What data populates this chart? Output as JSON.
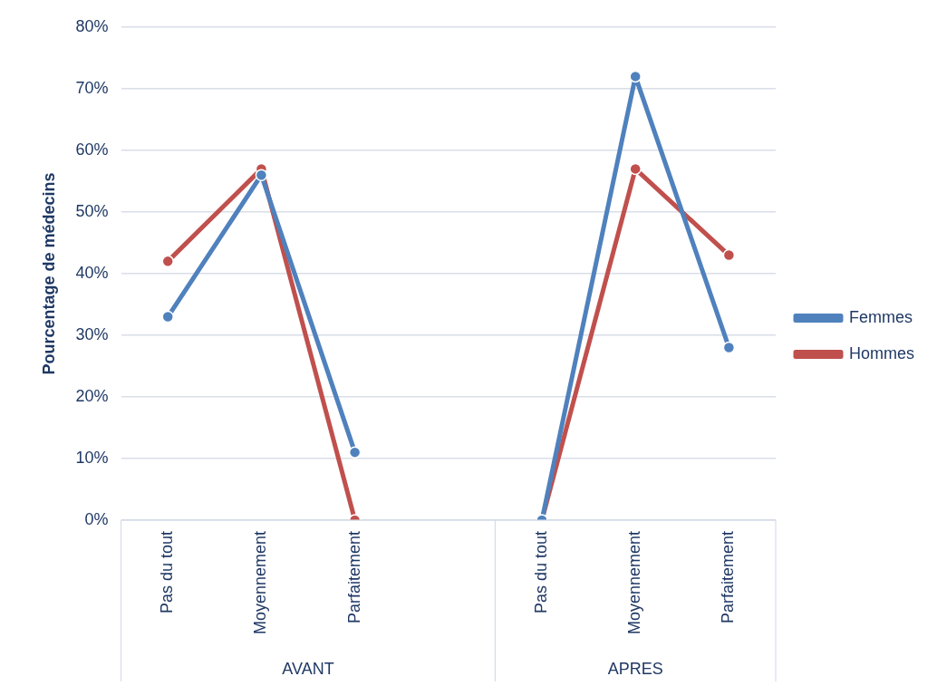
{
  "chart_data": {
    "type": "line",
    "categories": [
      "Pas du tout",
      "Moyennement",
      "Parfaitement",
      null,
      "Pas du tout",
      "Moyennement",
      "Parfaitement"
    ],
    "series": [
      {
        "name": "Femmes",
        "color": "#4f81bd",
        "values": [
          33,
          56,
          11,
          null,
          0,
          72,
          28
        ]
      },
      {
        "name": "Hommes",
        "color": "#c0504d",
        "values": [
          42,
          57,
          0,
          null,
          0,
          57,
          43
        ]
      }
    ],
    "ylabel": "Pourcentage de médecins",
    "ylim": [
      0,
      80
    ],
    "yticks": [
      {
        "value": 0,
        "label": "0%"
      },
      {
        "value": 10,
        "label": "10%"
      },
      {
        "value": 20,
        "label": "20%"
      },
      {
        "value": 30,
        "label": "30%"
      },
      {
        "value": 40,
        "label": "40%"
      },
      {
        "value": 50,
        "label": "50%"
      },
      {
        "value": 60,
        "label": "60%"
      },
      {
        "value": 70,
        "label": "70%"
      },
      {
        "value": 80,
        "label": "80%"
      }
    ],
    "annotations": [
      "AVANT",
      "APRES"
    ],
    "grid": "y",
    "legend": "right",
    "marker": "circle",
    "line_style": "solid"
  }
}
